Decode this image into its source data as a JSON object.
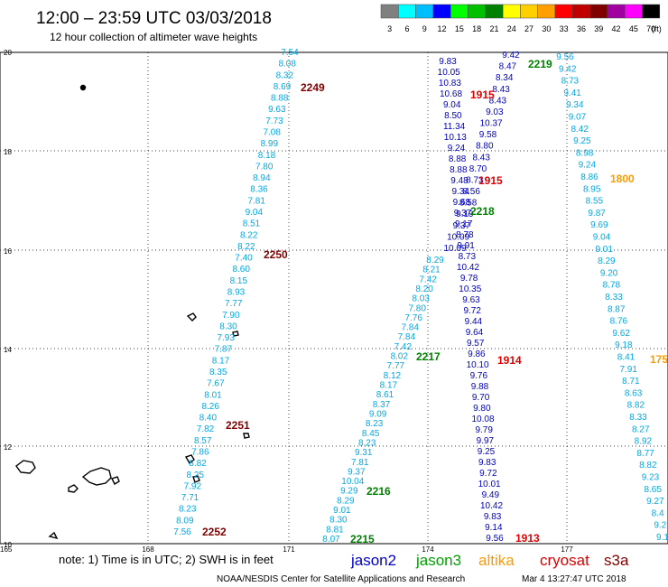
{
  "title": "12:00 – 23:59 UTC 03/03/2018",
  "subtitle": "12 hour collection of altimeter wave heights",
  "legend": {
    "unit": "(ft)",
    "entries": [
      {
        "label": "3",
        "color": "#808080"
      },
      {
        "label": "6",
        "color": "#00ffff"
      },
      {
        "label": "9",
        "color": "#00bfff"
      },
      {
        "label": "12",
        "color": "#0000ff"
      },
      {
        "label": "15",
        "color": "#00ff00"
      },
      {
        "label": "18",
        "color": "#00c000"
      },
      {
        "label": "21",
        "color": "#008000"
      },
      {
        "label": "24",
        "color": "#ffff00"
      },
      {
        "label": "27",
        "color": "#ffd000"
      },
      {
        "label": "30",
        "color": "#ffa000"
      },
      {
        "label": "33",
        "color": "#ff0000"
      },
      {
        "label": "36",
        "color": "#c00000"
      },
      {
        "label": "39",
        "color": "#800000"
      },
      {
        "label": "42",
        "color": "#a000a0"
      },
      {
        "label": "45",
        "color": "#ff00ff"
      },
      {
        "label": "70",
        "color": "#000000"
      }
    ]
  },
  "axes": {
    "y_labels": [
      "20",
      "18",
      "16",
      "14",
      "12",
      "10"
    ],
    "x_labels": [
      "165",
      "168",
      "171",
      "174",
      "177"
    ]
  },
  "colors": {
    "cyan_pass": "#00a8e8",
    "dark_pass": "#0000c0",
    "time_red": "#e00000",
    "time_dark": "#800000",
    "time_green": "#008000",
    "time_orange": "#ff9900"
  },
  "pass_times": [
    {
      "label": "2249",
      "color": "#800000"
    },
    {
      "label": "2250",
      "color": "#800000"
    },
    {
      "label": "2251",
      "color": "#800000"
    },
    {
      "label": "2252",
      "color": "#800000"
    },
    {
      "label": "1915",
      "color": "#e00000"
    },
    {
      "label": "1915",
      "color": "#e00000"
    },
    {
      "label": "2218",
      "color": "#008000"
    },
    {
      "label": "2217",
      "color": "#008000"
    },
    {
      "label": "2216",
      "color": "#008000"
    },
    {
      "label": "2215",
      "color": "#008000"
    },
    {
      "label": "2219",
      "color": "#008000"
    },
    {
      "label": "1914",
      "color": "#e00000"
    },
    {
      "label": "1913",
      "color": "#e00000"
    },
    {
      "label": "1800",
      "color": "#ff9900"
    },
    {
      "label": "175",
      "color": "#ff9900"
    }
  ],
  "tracks": {
    "left_cyan": [
      "7.54",
      "8.08",
      "8.32",
      "8.69",
      "8.88",
      "9.63",
      "7.73",
      "7.08",
      "8.99",
      "8.18",
      "7.80",
      "8.94",
      "8.36",
      "7.81",
      "9.04",
      "8.51",
      "8.22",
      "8.22",
      "7.40",
      "8.60",
      "8.15",
      "8.93",
      "7.77",
      "7.90",
      "8.30",
      "7.93",
      "7.87",
      "8.17",
      "8.35",
      "7.67",
      "8.01",
      "8.26",
      "8.40",
      "7.82",
      "8.57",
      "7.86",
      "8.82",
      "8.25",
      "7.92",
      "7.71",
      "8.23",
      "8.09",
      "7.56"
    ],
    "mid_cyan": [
      "8.29",
      "8.21",
      "7.42",
      "8.20",
      "8.03",
      "7.80",
      "7.76",
      "7.84",
      "7.84",
      "7.42",
      "8.02",
      "7.77",
      "8.12",
      "8.17",
      "8.61",
      "8.37",
      "9.09",
      "8.23",
      "8.45",
      "8.23",
      "9.31",
      "7.81",
      "9.37",
      "10.04",
      "9.29",
      "8.29",
      "9.01",
      "8.30",
      "8.81",
      "8.07"
    ],
    "mid_dark": [
      "9.83",
      "10.05",
      "10.83",
      "10.68",
      "9.04",
      "8.50",
      "11.34",
      "10.13",
      "9.24",
      "8.88",
      "8.88",
      "9.48",
      "9.34",
      "9.68",
      "9.37",
      "9.17",
      "8.78",
      "9.91",
      "8.73",
      "10.42",
      "9.78",
      "10.35",
      "9.63",
      "9.72",
      "9.44",
      "9.64",
      "9.57",
      "9.86",
      "10.10",
      "9.76",
      "9.88",
      "9.70",
      "9.80",
      "10.08",
      "9.79",
      "9.97",
      "9.25",
      "9.83",
      "9.72",
      "10.01",
      "9.49",
      "10.42",
      "9.83",
      "9.14",
      "9.56"
    ],
    "mid_dark2": [
      "9.42",
      "8.47",
      "8.34",
      "8.43",
      "8.43",
      "9.03",
      "10.37",
      "9.58",
      "8.80",
      "8.43",
      "8.70",
      "8.73",
      "8.56",
      "8.58",
      "9.19",
      "9.37",
      "10.09",
      "10.09"
    ],
    "right_cyan": [
      "9.56",
      "9.42",
      "8.73",
      "9.41",
      "9.34",
      "9.07",
      "8.42",
      "9.25",
      "8.98",
      "9.24",
      "8.86",
      "8.95",
      "8.55",
      "9.87",
      "9.69",
      "9.04",
      "9.01",
      "8.29",
      "9.20",
      "8.78",
      "8.33",
      "8.87",
      "8.76",
      "9.62",
      "9.18",
      "8.41",
      "7.91",
      "8.71",
      "8.63",
      "8.82",
      "8.33",
      "8.27",
      "8.92",
      "8.77",
      "8.82",
      "9.23",
      "8.65",
      "9.27",
      "8.4",
      "9.2",
      "9.1"
    ]
  },
  "satellites": [
    {
      "label": "jason2",
      "color": "#0000cc"
    },
    {
      "label": "jason3",
      "color": "#00a000"
    },
    {
      "label": "altika",
      "color": "#ff9900"
    },
    {
      "label": "cryosat",
      "color": "#e00000"
    },
    {
      "label": "s3a",
      "color": "#800000"
    }
  ],
  "note": "note:  1) Time is in UTC; 2) SWH is in feet",
  "footer_center": "NOAA/NESDIS Center for Satellite Applications and Research",
  "footer_right": "Mar  4 13:27:47 UTC 2018"
}
